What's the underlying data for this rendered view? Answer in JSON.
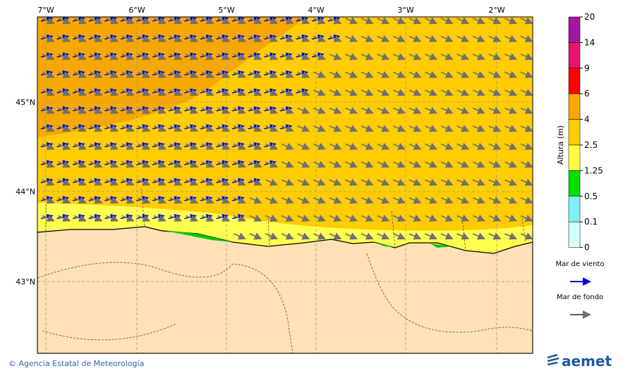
{
  "map": {
    "lon_labels": [
      "7°W",
      "6°W",
      "5°W",
      "4°W",
      "3°W",
      "2°W"
    ],
    "lat_labels": [
      "45°N",
      "44°N",
      "43°N"
    ]
  },
  "colorbar": {
    "title": "Altura (m)",
    "levels": [
      20,
      14,
      9,
      6,
      4,
      2.5,
      1.25,
      0.5,
      0.1,
      0
    ],
    "colors": [
      "#a414a4",
      "#e8126e",
      "#ff0000",
      "#ffa500",
      "#ffcc00",
      "#ffff40",
      "#00e000",
      "#80f0f8",
      "#d4ffff"
    ]
  },
  "legend": {
    "items": [
      "Mar de viento",
      "Mar de fondo"
    ],
    "colors": [
      "#0000dd",
      "#606060"
    ]
  },
  "footer": {
    "credit": "© Agencia Estatal de Meteorología",
    "logo": "aemet"
  }
}
